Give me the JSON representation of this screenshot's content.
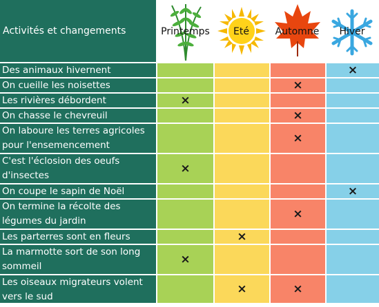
{
  "header": {
    "activities_label": "Activités et changements",
    "seasons": [
      {
        "key": "printemps",
        "label": "Printemps",
        "icon": "fern-icon"
      },
      {
        "key": "ete",
        "label": "Eté",
        "icon": "sun-icon"
      },
      {
        "key": "automne",
        "label": "Automne",
        "icon": "maple-leaf-icon"
      },
      {
        "key": "hiver",
        "label": "Hiver",
        "icon": "snowflake-icon"
      }
    ]
  },
  "mark_symbol": "×",
  "colors": {
    "activity_bg": "#1f6f5d",
    "printemps": "#a8d256",
    "ete": "#fbd85a",
    "automne": "#f88468",
    "hiver": "#86d0e8"
  },
  "rows": [
    {
      "activity": "Des animaux hivernent",
      "marks": [
        false,
        false,
        false,
        true
      ]
    },
    {
      "activity": "On cueille les noisettes",
      "marks": [
        false,
        false,
        true,
        false
      ]
    },
    {
      "activity": "Les rivières débordent",
      "marks": [
        true,
        false,
        false,
        false
      ]
    },
    {
      "activity": "On chasse le chevreuil",
      "marks": [
        false,
        false,
        true,
        false
      ]
    },
    {
      "activity": "On laboure les terres agricoles pour l'ensemencement",
      "marks": [
        false,
        false,
        true,
        false
      ]
    },
    {
      "activity": "C'est l'éclosion des oeufs d'insectes",
      "marks": [
        true,
        false,
        false,
        false
      ]
    },
    {
      "activity": "On coupe le sapin de Noël",
      "marks": [
        false,
        false,
        false,
        true
      ]
    },
    {
      "activity": "On termine la récolte des légumes du jardin",
      "marks": [
        false,
        false,
        true,
        false
      ]
    },
    {
      "activity": "Les parterres sont en fleurs",
      "marks": [
        false,
        true,
        false,
        false
      ]
    },
    {
      "activity": "La marmotte sort de son long sommeil",
      "marks": [
        true,
        false,
        false,
        false
      ]
    },
    {
      "activity": "Les oiseaux migrateurs volent vers le sud",
      "marks": [
        false,
        true,
        true,
        false
      ]
    }
  ]
}
